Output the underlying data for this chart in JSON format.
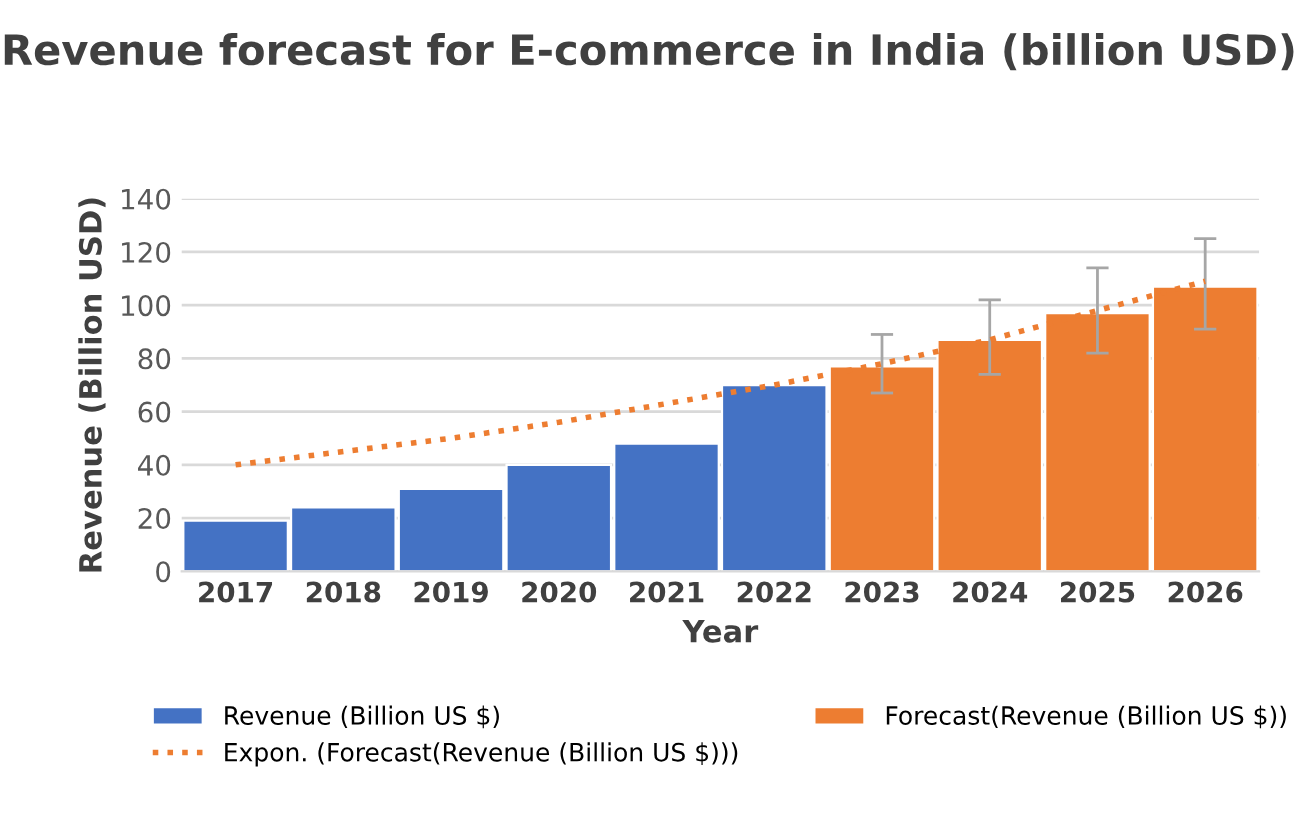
{
  "chart_data": {
    "type": "bar",
    "title": "Revenue forecast for E-commerce in India (billion USD)",
    "xlabel": "Year",
    "ylabel": "Revenue (Billion USD)",
    "categories": [
      "2017",
      "2018",
      "2019",
      "2020",
      "2021",
      "2022",
      "2023",
      "2024",
      "2025",
      "2026"
    ],
    "series": [
      {
        "name": "Revenue (Billion US $)",
        "color": "#4472c4",
        "values": [
          19,
          24,
          31,
          40,
          48,
          70,
          null,
          null,
          null,
          null
        ]
      },
      {
        "name": "Forecast(Revenue (Billion US $))",
        "color": "#ed7d31",
        "values": [
          null,
          null,
          null,
          null,
          null,
          null,
          77,
          87,
          97,
          107
        ],
        "errors": [
          null,
          null,
          null,
          null,
          null,
          null,
          [
            67,
            89
          ],
          [
            74,
            102
          ],
          [
            82,
            114
          ],
          [
            91,
            125
          ]
        ]
      },
      {
        "name": "Expon. (Forecast(Revenue (Billion US $)))",
        "type": "line",
        "color": "#ed7d31",
        "line_style": "dotted",
        "marker": "none",
        "values": [
          40,
          45,
          50,
          56,
          63,
          70,
          78,
          87,
          98,
          109
        ]
      }
    ],
    "ylim": [
      0,
      140
    ],
    "yticks": [
      0,
      20,
      40,
      60,
      80,
      100,
      120,
      140
    ],
    "grid": "y",
    "legend": "bottom"
  }
}
